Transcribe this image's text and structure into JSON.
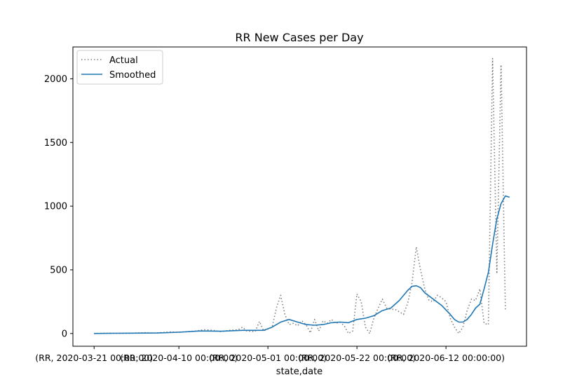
{
  "chart_data": {
    "type": "line",
    "title": "RR New Cases per Day",
    "xlabel": "state,date",
    "ylabel": "",
    "ylim": [
      -100,
      2250
    ],
    "xlim": [
      -5,
      102
    ],
    "grid": false,
    "legend_position": "top-left",
    "yticks": [
      0,
      500,
      1000,
      1500,
      2000
    ],
    "xticks": [
      {
        "x": 0,
        "label": "(RR, 2020-03-21 00:00:00)"
      },
      {
        "x": 20,
        "label": "(RR, 2020-04-10 00:00:00)"
      },
      {
        "x": 41,
        "label": "(RR, 2020-05-01 00:00:00)"
      },
      {
        "x": 62,
        "label": "(RR, 2020-05-22 00:00:00)"
      },
      {
        "x": 83,
        "label": "(RR, 2020-06-12 00:00:00)"
      }
    ],
    "series": [
      {
        "name": "Actual",
        "color": "#7f7f7f",
        "style": "dotted",
        "points": [
          [
            0,
            0
          ],
          [
            2,
            2
          ],
          [
            4,
            3
          ],
          [
            6,
            1
          ],
          [
            8,
            2
          ],
          [
            10,
            4
          ],
          [
            12,
            6
          ],
          [
            14,
            3
          ],
          [
            16,
            8
          ],
          [
            18,
            12
          ],
          [
            20,
            10
          ],
          [
            22,
            14
          ],
          [
            24,
            20
          ],
          [
            26,
            30
          ],
          [
            28,
            25
          ],
          [
            30,
            15
          ],
          [
            32,
            25
          ],
          [
            34,
            30
          ],
          [
            35,
            50
          ],
          [
            36,
            20
          ],
          [
            38,
            15
          ],
          [
            39,
            95
          ],
          [
            40,
            20
          ],
          [
            42,
            50
          ],
          [
            43,
            200
          ],
          [
            44,
            300
          ],
          [
            45,
            150
          ],
          [
            46,
            70
          ],
          [
            47,
            80
          ],
          [
            48,
            60
          ],
          [
            49,
            100
          ],
          [
            50,
            70
          ],
          [
            51,
            5
          ],
          [
            52,
            110
          ],
          [
            53,
            20
          ],
          [
            54,
            100
          ],
          [
            55,
            80
          ],
          [
            56,
            110
          ],
          [
            57,
            80
          ],
          [
            58,
            90
          ],
          [
            59,
            60
          ],
          [
            60,
            0
          ],
          [
            61,
            20
          ],
          [
            62,
            310
          ],
          [
            63,
            250
          ],
          [
            64,
            50
          ],
          [
            65,
            0
          ],
          [
            66,
            120
          ],
          [
            67,
            200
          ],
          [
            68,
            270
          ],
          [
            69,
            200
          ],
          [
            70,
            190
          ],
          [
            71,
            190
          ],
          [
            72,
            170
          ],
          [
            73,
            150
          ],
          [
            74,
            240
          ],
          [
            75,
            400
          ],
          [
            76,
            680
          ],
          [
            77,
            500
          ],
          [
            78,
            350
          ],
          [
            79,
            260
          ],
          [
            80,
            250
          ],
          [
            81,
            300
          ],
          [
            82,
            280
          ],
          [
            83,
            250
          ],
          [
            84,
            120
          ],
          [
            85,
            50
          ],
          [
            86,
            0
          ],
          [
            87,
            50
          ],
          [
            88,
            180
          ],
          [
            89,
            270
          ],
          [
            90,
            260
          ],
          [
            91,
            350
          ],
          [
            92,
            80
          ],
          [
            93,
            70
          ],
          [
            94,
            2160
          ],
          [
            95,
            470
          ],
          [
            96,
            2110
          ],
          [
            97,
            190
          ]
        ]
      },
      {
        "name": "Smoothed",
        "color": "#1f77b4",
        "style": "solid",
        "points": [
          [
            0,
            0
          ],
          [
            5,
            2
          ],
          [
            10,
            3
          ],
          [
            15,
            4
          ],
          [
            20,
            10
          ],
          [
            25,
            20
          ],
          [
            30,
            18
          ],
          [
            35,
            25
          ],
          [
            40,
            25
          ],
          [
            42,
            50
          ],
          [
            44,
            90
          ],
          [
            46,
            110
          ],
          [
            48,
            90
          ],
          [
            50,
            70
          ],
          [
            52,
            65
          ],
          [
            54,
            70
          ],
          [
            56,
            85
          ],
          [
            58,
            90
          ],
          [
            60,
            85
          ],
          [
            62,
            110
          ],
          [
            64,
            120
          ],
          [
            66,
            140
          ],
          [
            68,
            180
          ],
          [
            70,
            200
          ],
          [
            72,
            260
          ],
          [
            74,
            340
          ],
          [
            75,
            370
          ],
          [
            76,
            375
          ],
          [
            77,
            360
          ],
          [
            78,
            320
          ],
          [
            80,
            270
          ],
          [
            82,
            220
          ],
          [
            84,
            150
          ],
          [
            85,
            110
          ],
          [
            86,
            90
          ],
          [
            87,
            90
          ],
          [
            88,
            110
          ],
          [
            89,
            150
          ],
          [
            90,
            200
          ],
          [
            91,
            230
          ],
          [
            92,
            350
          ],
          [
            93,
            480
          ],
          [
            94,
            700
          ],
          [
            95,
            900
          ],
          [
            96,
            1020
          ],
          [
            97,
            1080
          ],
          [
            98,
            1070
          ]
        ]
      }
    ]
  }
}
